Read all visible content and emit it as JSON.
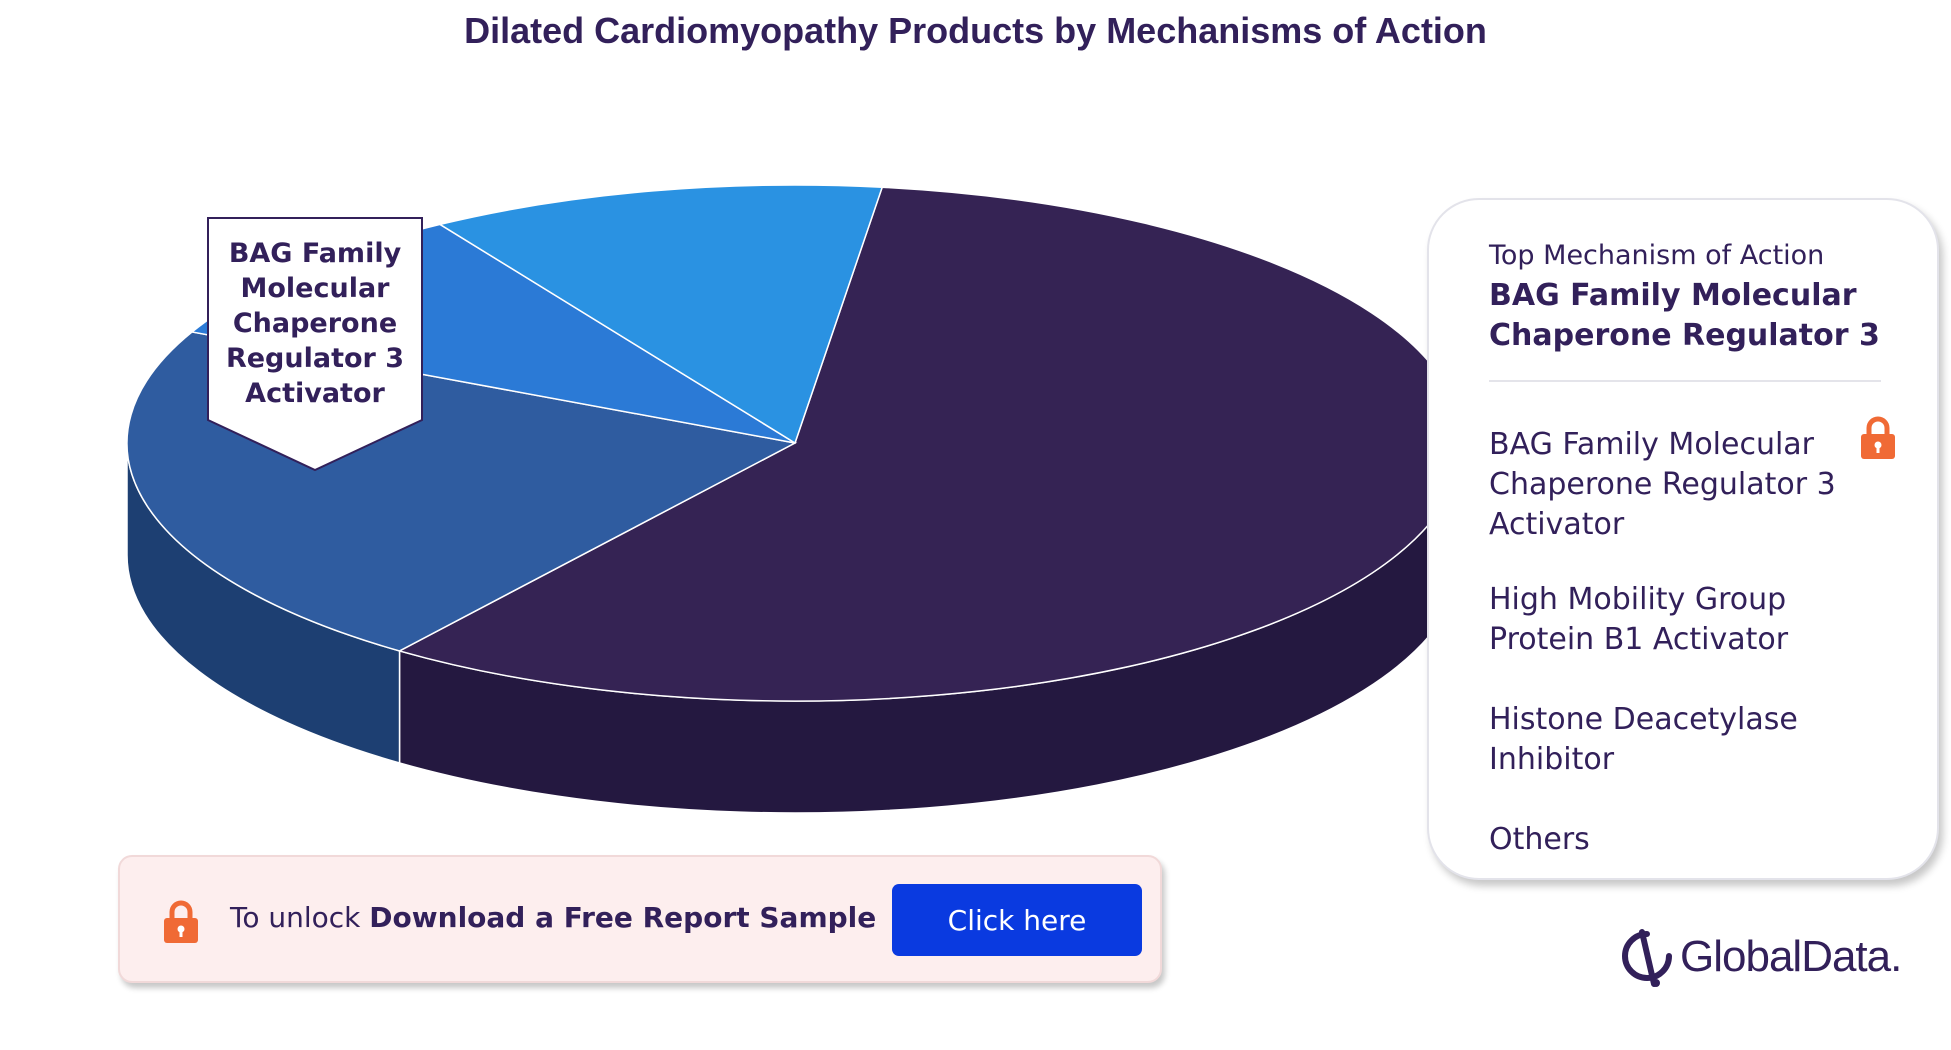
{
  "title": "Dilated Cardiomyopathy Products by Mechanisms of Action",
  "chart_data": {
    "type": "pie",
    "style": "3d",
    "categories": [
      "BAG Family Molecular Chaperone Regulator 3 Activator",
      "High Mobility Group Protein B1 Activator",
      "Histone Deacetylase Inhibitor",
      "Others"
    ],
    "values": [
      58,
      22,
      9,
      11
    ],
    "colors": [
      "#352354",
      "#2f5ca0",
      "#2b7ad6",
      "#2a92e2"
    ],
    "side_colors": [
      "#241840",
      "#1d3f72",
      "#163a66",
      "#0f3656"
    ],
    "callout": "BAG Family Molecular Chaperone Regulator 3 Activator"
  },
  "legend": {
    "heading": "Top Mechanism of Action",
    "top_value": "BAG Family Molecular Chaperone Regulator 3",
    "items": [
      "BAG Family Molecular Chaperone Regulator 3 Activator",
      "High Mobility Group Protein B1 Activator",
      "Histone Deacetylase Inhibitor",
      "Others"
    ],
    "lock_icon": "lock-icon",
    "lock_color": "#f06a35"
  },
  "cta": {
    "prefix": "To unlock",
    "bold_text": "Download a Free Report Sample",
    "button_label": "Click here",
    "lock_icon": "lock-icon"
  },
  "brand": {
    "name": "GlobalData."
  }
}
